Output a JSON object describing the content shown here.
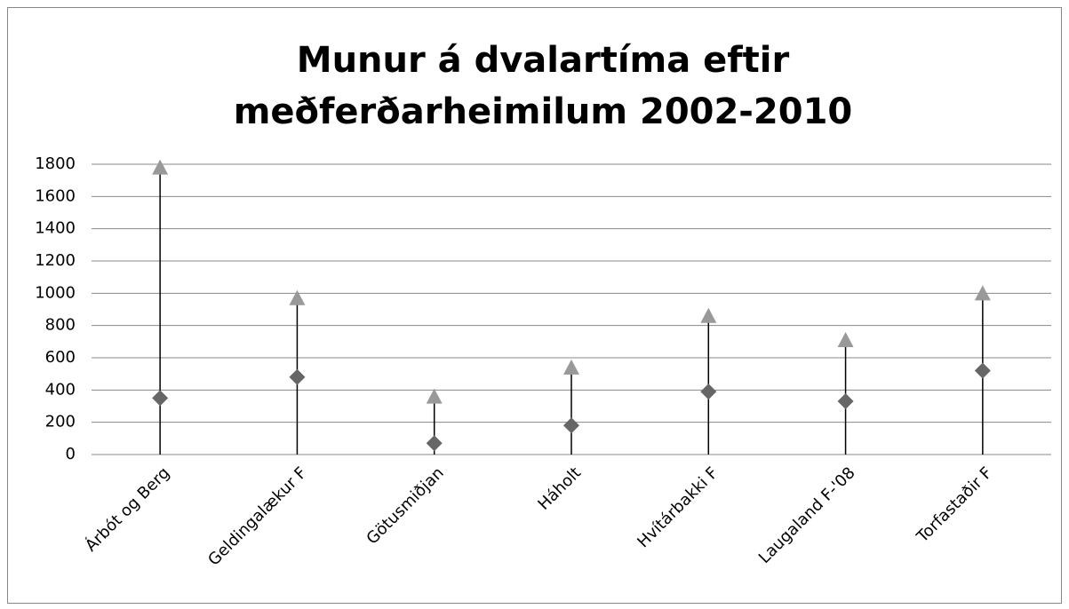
{
  "chart_data": {
    "type": "dropline",
    "title": [
      "Munur á dvalartíma eftir",
      "meðferðarheimilum 2002-2010"
    ],
    "categories": [
      "Árbót og Berg",
      "Geldingalækur F",
      "Götusmiðjan",
      "Háholt",
      "Hvítárbakki F",
      "Laugaland F-'08",
      "Torfastaðir F"
    ],
    "series": [
      {
        "marker": "diamond",
        "color": "#666666",
        "values": [
          350,
          480,
          70,
          180,
          390,
          330,
          520
        ]
      },
      {
        "marker": "triangle",
        "color": "#999999",
        "values": [
          1780,
          970,
          360,
          540,
          860,
          710,
          1000
        ]
      }
    ],
    "ylim": [
      0,
      1800
    ],
    "yticks": [
      0,
      200,
      400,
      600,
      800,
      1000,
      1200,
      1400,
      1600,
      1800
    ],
    "grid": true
  }
}
